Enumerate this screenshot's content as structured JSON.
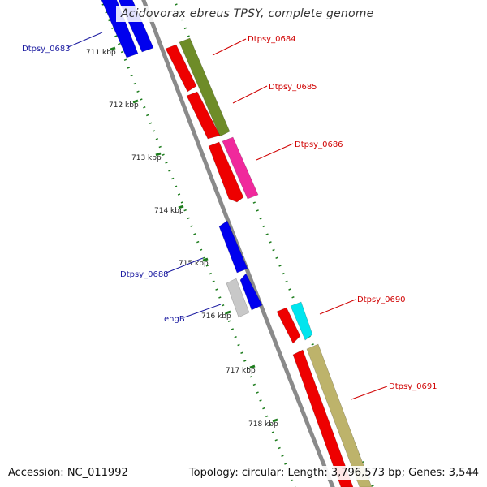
{
  "title": "Acidovorax ebreus TPSY, complete genome",
  "footer": {
    "accession": "Accession: NC_011992",
    "summary": "Topology: circular; Length: 3,796,573 bp; Genes: 3,544"
  },
  "ticks": [
    "711 kbp",
    "712 kbp",
    "713 kbp",
    "714 kbp",
    "715 kbp",
    "716 kbp",
    "717 kbp",
    "718 kbp"
  ],
  "gene_labels": {
    "left": [
      "Dtpsy_0683",
      "Dtpsy_0688",
      "engB"
    ],
    "right": [
      "Dtpsy_0684",
      "Dtpsy_0685",
      "Dtpsy_0686",
      "Dtpsy_0690",
      "Dtpsy_0691"
    ]
  },
  "colors": {
    "backbone": "#8a8a8a",
    "tick": "#1e7d1e",
    "reverse_label": "#1a1aa0",
    "forward_label": "#d00000",
    "blue_gene": "#0000ee",
    "red_gene": "#ee0000",
    "olive_gene": "#6e8c28",
    "pink_gene": "#f0299c",
    "cyan_gene": "#00e5ee",
    "khaki_gene": "#bdb36b",
    "grey_gene": "#c8c8c8"
  }
}
